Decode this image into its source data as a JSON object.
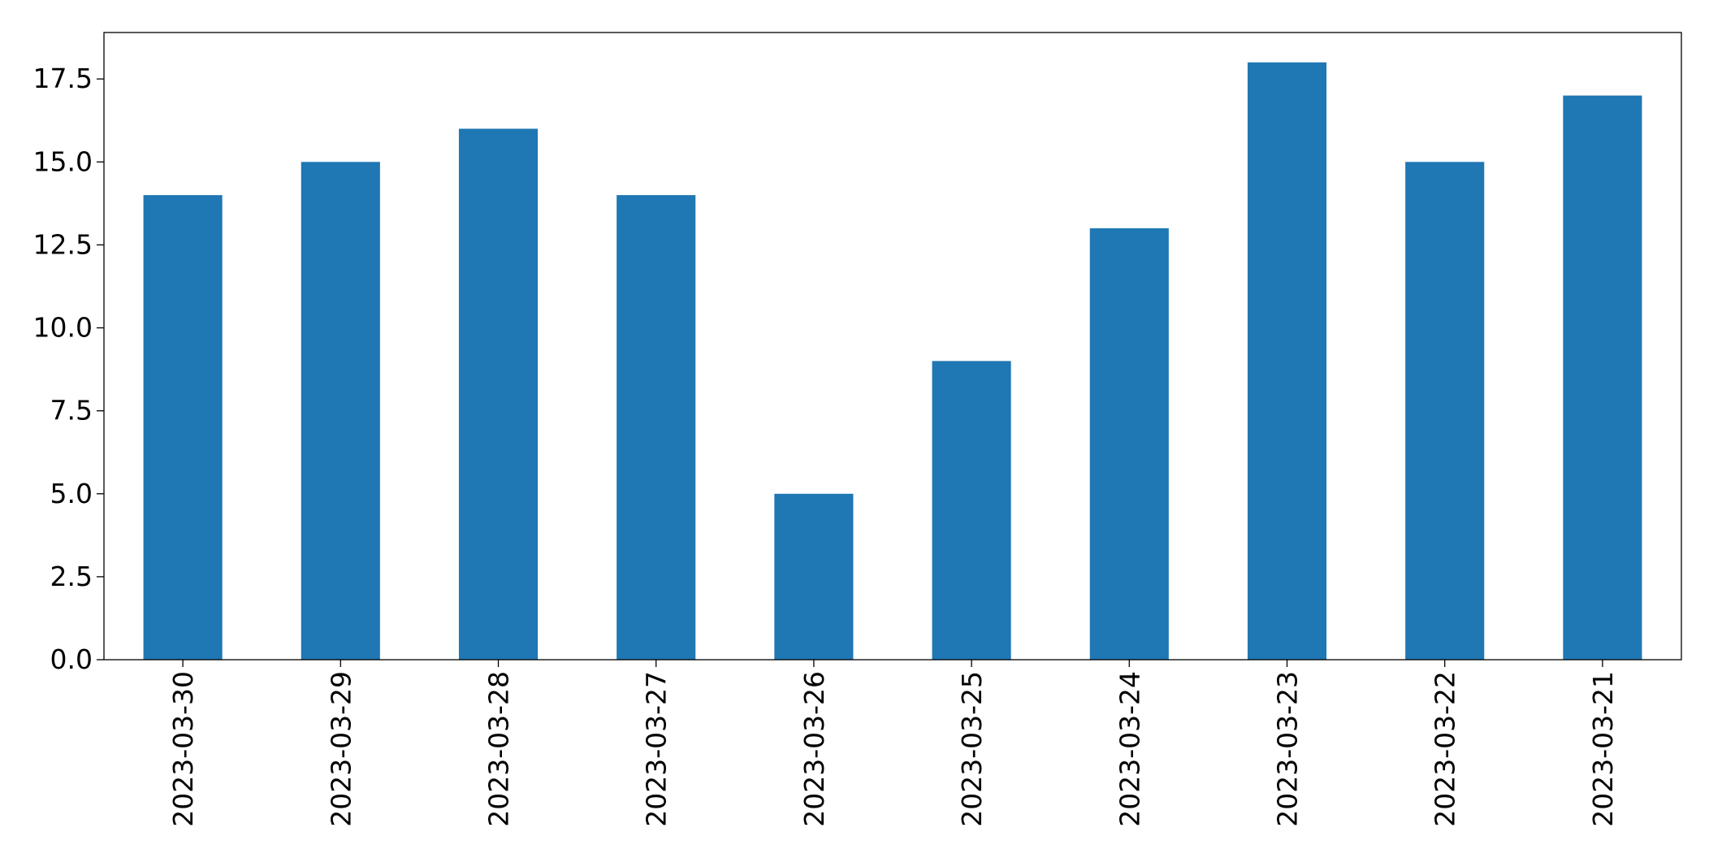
{
  "chart_data": {
    "type": "bar",
    "categories": [
      "2023-03-30",
      "2023-03-29",
      "2023-03-28",
      "2023-03-27",
      "2023-03-26",
      "2023-03-25",
      "2023-03-24",
      "2023-03-23",
      "2023-03-22",
      "2023-03-21"
    ],
    "values": [
      14,
      15,
      16,
      14,
      5,
      9,
      13,
      18,
      15,
      17
    ],
    "title": "",
    "xlabel": "",
    "ylabel": "",
    "ylim": [
      0,
      18.9
    ],
    "yticks": [
      "0.0",
      "2.5",
      "5.0",
      "7.5",
      "10.0",
      "12.5",
      "15.0",
      "17.5"
    ],
    "grid": false,
    "legend": "none",
    "bar_color": "#1f77b4"
  }
}
